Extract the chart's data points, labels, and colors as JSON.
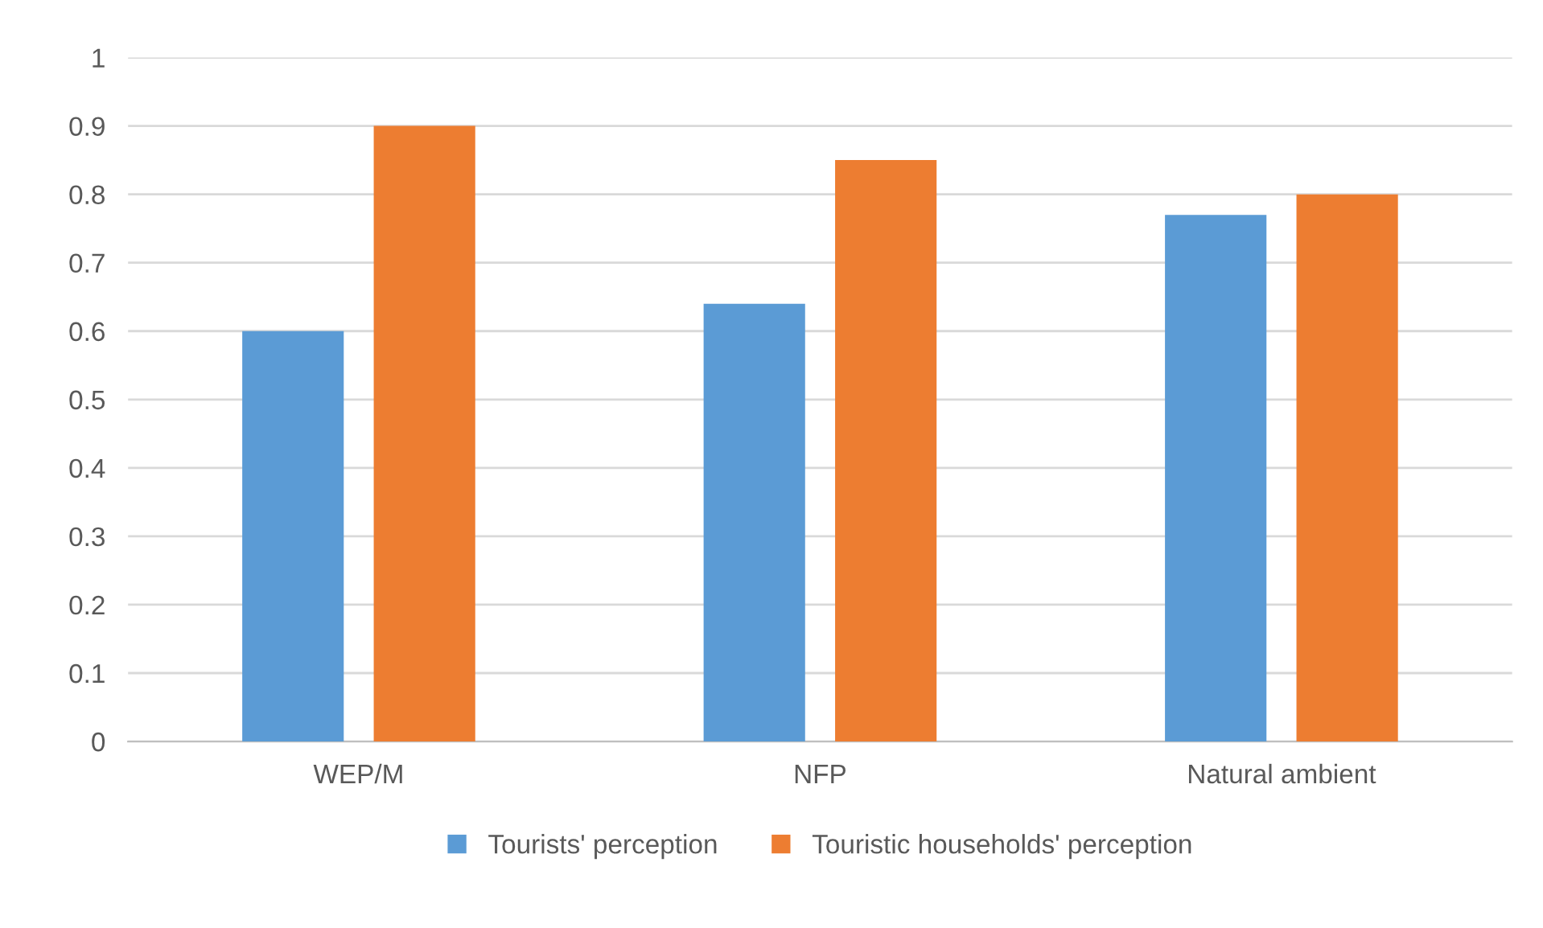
{
  "chart_data": {
    "type": "bar",
    "categories": [
      "WEP/M",
      "NFP",
      "Natural ambient"
    ],
    "series": [
      {
        "name": "Tourists' perception",
        "color": "#5b9bd5",
        "values": [
          0.6,
          0.64,
          0.77
        ]
      },
      {
        "name": "Touristic households' perception",
        "color": "#ed7d31",
        "values": [
          0.9,
          0.85,
          0.8
        ]
      }
    ],
    "ylim": [
      0,
      1
    ],
    "yticks": [
      0,
      0.1,
      0.2,
      0.3,
      0.4,
      0.5,
      0.6,
      0.7,
      0.8,
      0.9,
      1
    ],
    "grid": "y",
    "legend": "bottom"
  }
}
